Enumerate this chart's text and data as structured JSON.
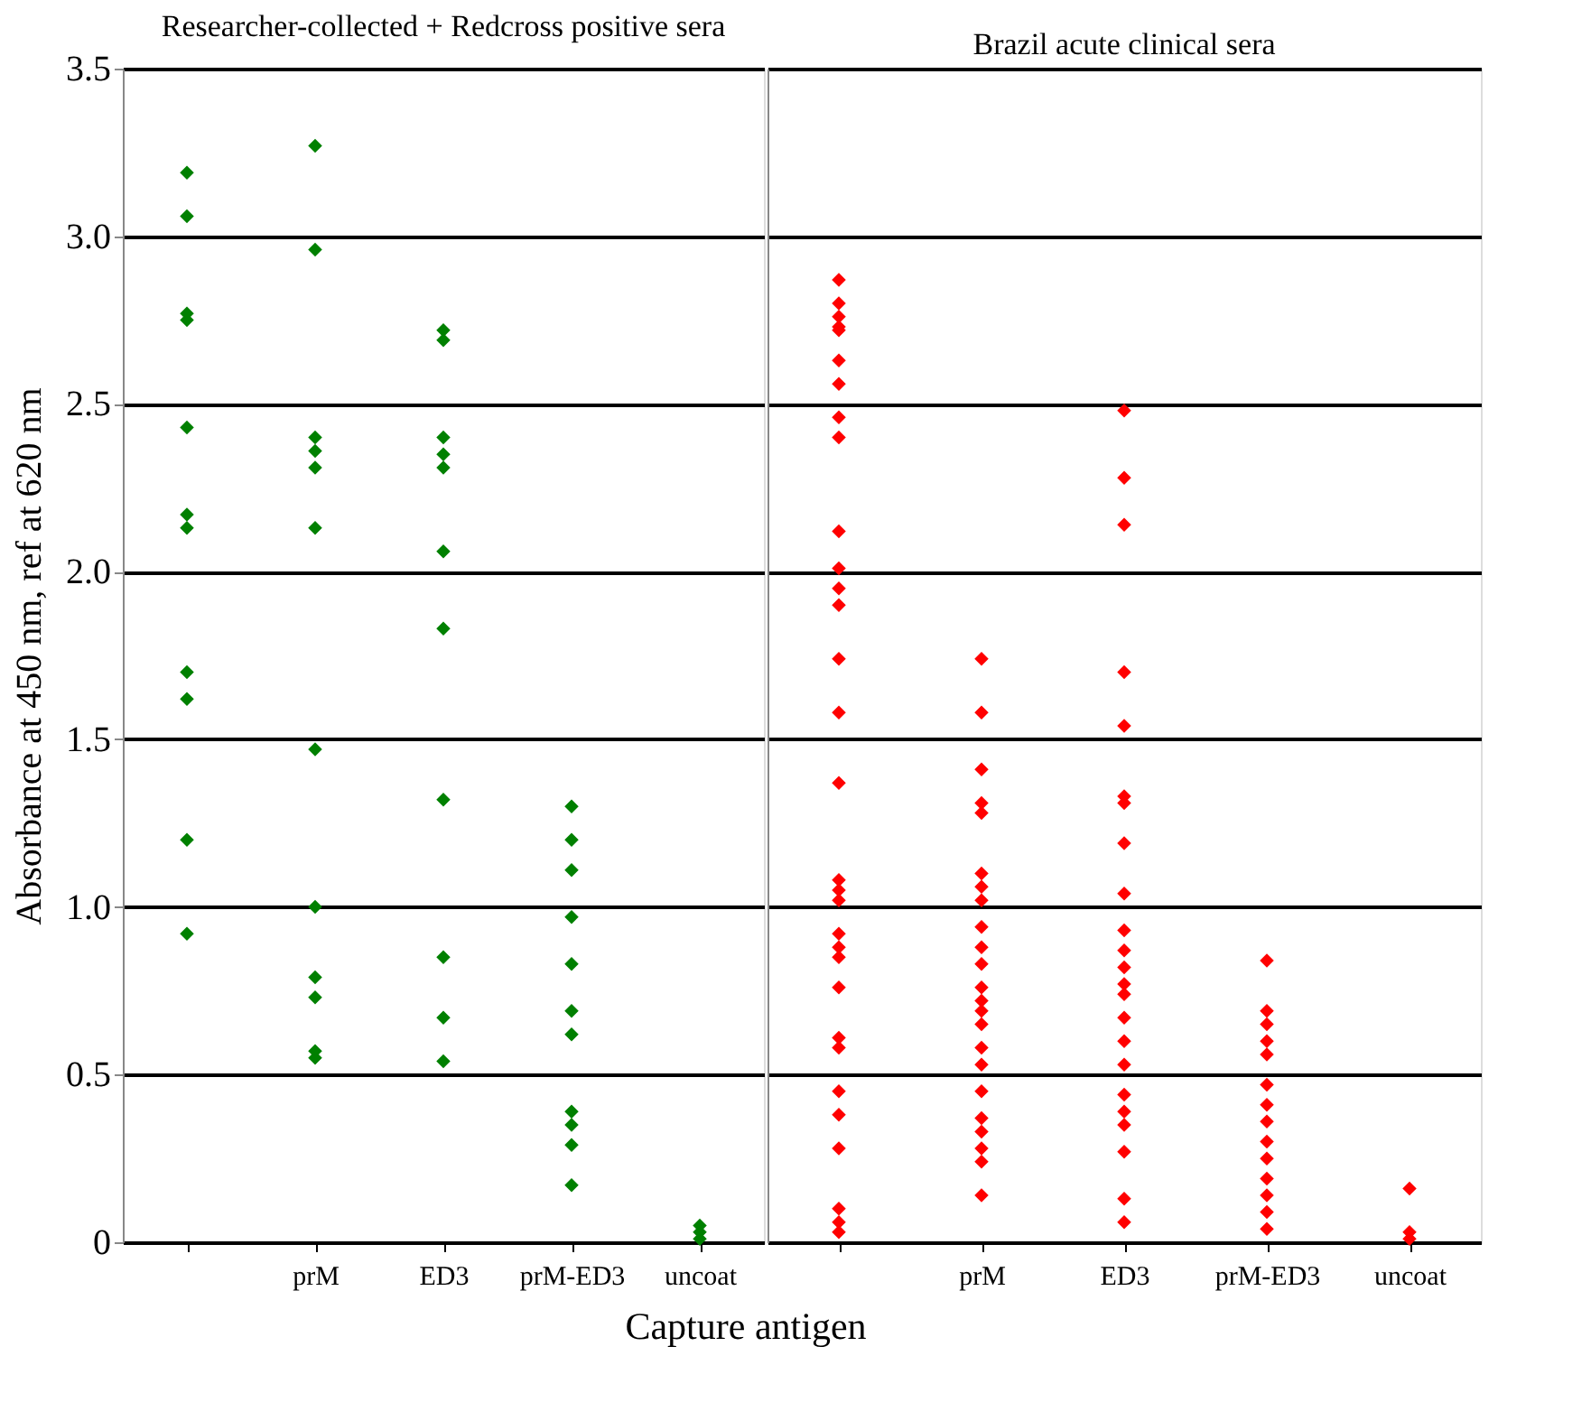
{
  "chart_data": [
    {
      "type": "scatter",
      "title": "Researcher-collected + Redcross positive sera",
      "xlabel": "Capture antigen",
      "ylabel": "Absorbance at 450 nm, ref at 620 nm",
      "categories": [
        null,
        "prM",
        "ED3",
        "prM-ED3",
        "uncoat"
      ],
      "ylim": [
        0,
        3.5
      ],
      "yticks": [
        0,
        0.5,
        {
          "value": 1,
          "label": "1.0"
        },
        1.5,
        {
          "value": 2,
          "label": "2.0"
        },
        2.5,
        {
          "value": 3,
          "label": "3.0"
        },
        3.5
      ],
      "grid": "y",
      "marker": "diamond",
      "legend": false,
      "series": [
        {
          "color": "#008000",
          "values": [
            3.19,
            3.27,
            2.72,
            1.3,
            0.05
          ]
        },
        {
          "color": "#008000",
          "values": [
            3.06,
            2.96,
            2.69,
            1.2,
            0.03
          ]
        },
        {
          "color": "#008000",
          "values": [
            2.77,
            2.4,
            2.4,
            1.11,
            0.01
          ]
        },
        {
          "color": "#008000",
          "values": [
            2.75,
            2.36,
            2.35,
            0.97,
            null
          ]
        },
        {
          "color": "#008000",
          "values": [
            2.43,
            2.31,
            2.31,
            0.83,
            null
          ]
        },
        {
          "color": "#008000",
          "values": [
            2.17,
            2.13,
            2.06,
            0.69,
            null
          ]
        },
        {
          "color": "#008000",
          "values": [
            2.13,
            1.47,
            1.83,
            0.62,
            null
          ]
        },
        {
          "color": "#008000",
          "values": [
            1.7,
            1.0,
            1.32,
            0.39,
            null
          ]
        },
        {
          "color": "#008000",
          "values": [
            1.62,
            0.79,
            0.85,
            0.35,
            null
          ]
        },
        {
          "color": "#008000",
          "values": [
            1.2,
            0.73,
            0.67,
            0.29,
            null
          ]
        },
        {
          "color": "#008000",
          "values": [
            0.92,
            0.57,
            0.54,
            0.17,
            null
          ]
        },
        {
          "color": "#008000",
          "values": [
            null,
            0.55,
            null,
            null,
            null
          ]
        }
      ]
    },
    {
      "type": "scatter",
      "title": "Brazil acute clinical sera",
      "categories": [
        null,
        "prM",
        "ED3",
        "prM-ED3",
        "uncoat"
      ],
      "ylim": [
        0,
        3.5
      ],
      "yticks": [
        0,
        0.5,
        1,
        1.5,
        2,
        2.5,
        3,
        3.5
      ],
      "tick_labels": "x",
      "grid": "y",
      "marker": "diamond",
      "legend": false,
      "series": [
        {
          "color": "#ff0000",
          "values": [
            2.87,
            1.74,
            2.48,
            0.84,
            0.16
          ]
        },
        {
          "color": "#ff0000",
          "values": [
            2.8,
            1.58,
            2.28,
            0.69,
            0.03
          ]
        },
        {
          "color": "#ff0000",
          "values": [
            2.76,
            1.41,
            2.14,
            0.65,
            0.01
          ]
        },
        {
          "color": "#ff0000",
          "values": [
            2.73,
            1.31,
            1.7,
            0.6,
            null
          ]
        },
        {
          "color": "#ff0000",
          "values": [
            2.72,
            1.28,
            1.54,
            0.56,
            null
          ]
        },
        {
          "color": "#ff0000",
          "values": [
            2.63,
            1.1,
            1.33,
            0.47,
            null
          ]
        },
        {
          "color": "#ff0000",
          "values": [
            2.56,
            1.06,
            1.31,
            0.41,
            null
          ]
        },
        {
          "color": "#ff0000",
          "values": [
            2.46,
            1.02,
            1.19,
            0.36,
            null
          ]
        },
        {
          "color": "#ff0000",
          "values": [
            2.4,
            0.94,
            1.04,
            0.3,
            null
          ]
        },
        {
          "color": "#ff0000",
          "values": [
            2.12,
            0.88,
            0.93,
            0.25,
            null
          ]
        },
        {
          "color": "#ff0000",
          "values": [
            2.01,
            0.83,
            0.87,
            0.19,
            null
          ]
        },
        {
          "color": "#ff0000",
          "values": [
            1.95,
            0.76,
            0.82,
            0.14,
            null
          ]
        },
        {
          "color": "#ff0000",
          "values": [
            1.9,
            0.72,
            0.77,
            0.09,
            null
          ]
        },
        {
          "color": "#ff0000",
          "values": [
            1.74,
            0.69,
            0.74,
            0.04,
            null
          ]
        },
        {
          "color": "#ff0000",
          "values": [
            1.58,
            0.65,
            0.67,
            null,
            null
          ]
        },
        {
          "color": "#ff0000",
          "values": [
            1.37,
            0.58,
            0.6,
            null,
            null
          ]
        },
        {
          "color": "#ff0000",
          "values": [
            1.08,
            0.53,
            0.53,
            null,
            null
          ]
        },
        {
          "color": "#ff0000",
          "values": [
            1.05,
            0.45,
            0.44,
            null,
            null
          ]
        },
        {
          "color": "#ff0000",
          "values": [
            1.02,
            0.37,
            0.39,
            null,
            null
          ]
        },
        {
          "color": "#ff0000",
          "values": [
            0.92,
            0.33,
            0.35,
            null,
            null
          ]
        },
        {
          "color": "#ff0000",
          "values": [
            0.88,
            0.28,
            0.27,
            null,
            null
          ]
        },
        {
          "color": "#ff0000",
          "values": [
            0.85,
            0.24,
            0.13,
            null,
            null
          ]
        },
        {
          "color": "#ff0000",
          "values": [
            0.76,
            0.14,
            0.06,
            null,
            null
          ]
        },
        {
          "color": "#ff0000",
          "values": [
            0.61,
            null,
            null,
            null,
            null
          ]
        },
        {
          "color": "#ff0000",
          "values": [
            0.58,
            null,
            null,
            null,
            null
          ]
        },
        {
          "color": "#ff0000",
          "values": [
            0.45,
            null,
            null,
            null,
            null
          ]
        },
        {
          "color": "#ff0000",
          "values": [
            0.38,
            null,
            null,
            null,
            null
          ]
        },
        {
          "color": "#ff0000",
          "values": [
            0.28,
            null,
            null,
            null,
            null
          ]
        },
        {
          "color": "#ff0000",
          "values": [
            0.1,
            null,
            null,
            null,
            null
          ]
        },
        {
          "color": "#ff0000",
          "values": [
            0.06,
            null,
            null,
            null,
            null
          ]
        },
        {
          "color": "#ff0000",
          "values": [
            0.03,
            null,
            null,
            null,
            null
          ]
        }
      ]
    }
  ]
}
